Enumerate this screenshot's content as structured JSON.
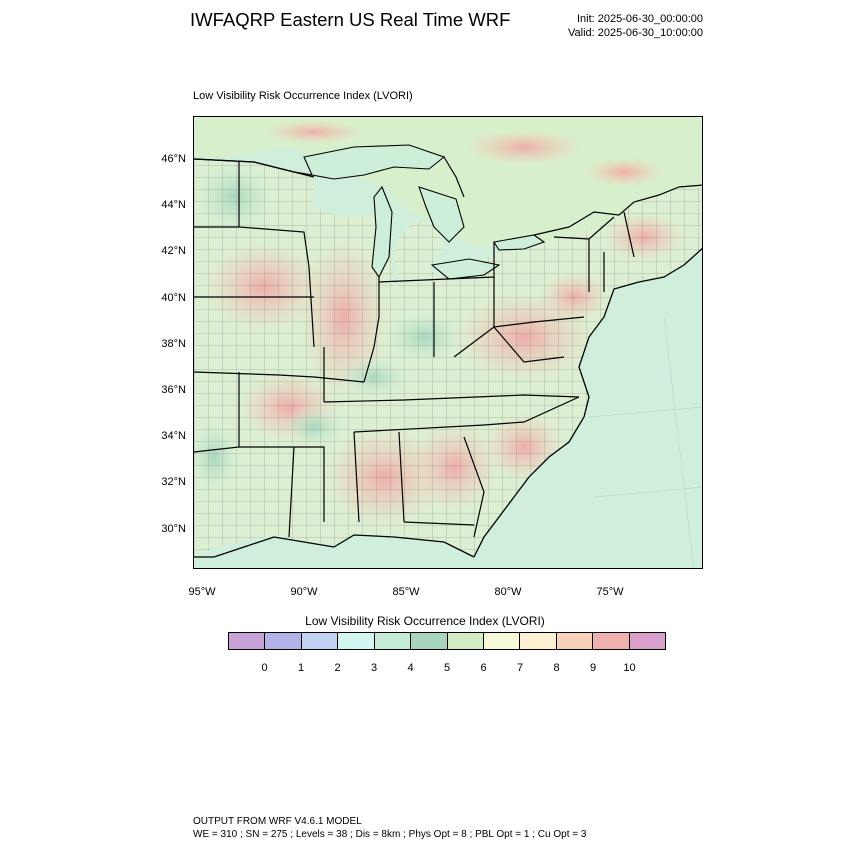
{
  "header": {
    "title": "IWFAQRP Eastern US Real Time WRF",
    "init": "Init: 2025-06-30_00:00:00",
    "valid": "Valid: 2025-06-30_10:00:00"
  },
  "plot_title": "Low Visibility Risk Occurrence Index   (LVORI)",
  "map": {
    "lat_labels": [
      "46°N",
      "44°N",
      "42°N",
      "40°N",
      "38°N",
      "36°N",
      "34°N",
      "32°N",
      "30°N"
    ],
    "lon_labels": [
      "95°W",
      "90°W",
      "85°W",
      "80°W",
      "75°W"
    ],
    "colors": {
      "water": "#cfeedb",
      "land": "#dcefd2",
      "boundary": "#000000"
    }
  },
  "colorbar": {
    "title": "Low Visibility Risk Occurrence Index  (LVORI)",
    "colors": [
      "#c7a3d8",
      "#b3b3ea",
      "#c3d1f3",
      "#d3f6f0",
      "#c6ecd7",
      "#a7d6bb",
      "#d3ecc4",
      "#f6fad9",
      "#fdf0d1",
      "#f8d1bd",
      "#efb1ad",
      "#d9a1cc"
    ],
    "labels": [
      "0",
      "1",
      "2",
      "3",
      "4",
      "5",
      "6",
      "7",
      "8",
      "9",
      "10"
    ]
  },
  "footer": {
    "line1": "OUTPUT FROM WRF V4.6.1 MODEL",
    "line2": "WE = 310 ; SN = 275 ; Levels = 38 ; Dis = 8km ; Phys Opt = 8 ; PBL Opt = 1 ; Cu Opt = 3"
  }
}
